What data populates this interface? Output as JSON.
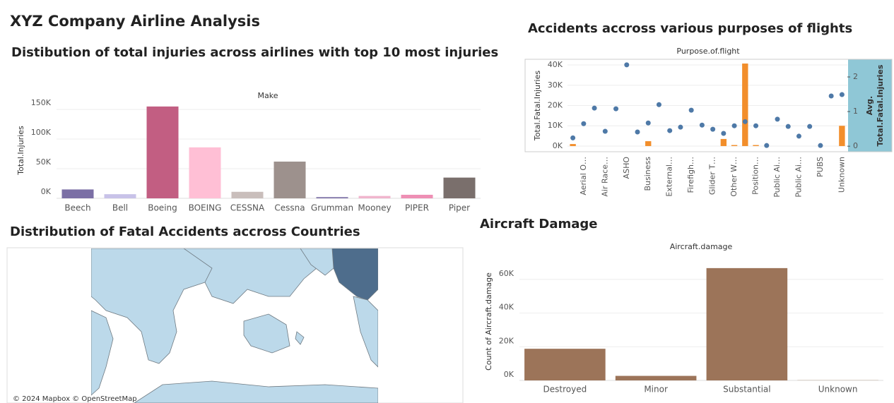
{
  "title": "XYZ Company Airline Analysis",
  "chart_data": [
    {
      "type": "bar",
      "title": "Distibution of total injuries across airlines with top 10 most injuries",
      "header": "Make",
      "ylabel": "Total.Injuries",
      "categories": [
        "Beech",
        "Bell",
        "Boeing",
        "BOEING",
        "CESSNA",
        "Cessna",
        "Grumman",
        "Mooney",
        "PIPER",
        "Piper"
      ],
      "values": [
        15000,
        7000,
        155000,
        86000,
        11000,
        62000,
        2000,
        4000,
        6000,
        35000
      ],
      "colors": [
        "#7b6fa5",
        "#c8c2e8",
        "#c25e82",
        "#ffbfd5",
        "#c9bebb",
        "#9d918d",
        "#7b6fa5",
        "#f0b5cd",
        "#ee8fb4",
        "#7a6f6c"
      ],
      "ylim": [
        0,
        162000
      ],
      "yticks": [
        {
          "value": 0,
          "label": "0K"
        },
        {
          "value": 50000,
          "label": "50K"
        },
        {
          "value": 100000,
          "label": "100K"
        },
        {
          "value": 150000,
          "label": "150K"
        }
      ],
      "grid": true
    },
    {
      "type": "combo",
      "title": "Accidents accross various purposes of flights",
      "header": "Purpose.of.flight",
      "ylabel": "Total.Fatal.Injuries",
      "y2label": [
        "Avg.",
        "Total.Fatal.Injuries"
      ],
      "categories": [
        null,
        "Aerial O…",
        null,
        "Air Race…",
        null,
        "ASHO",
        null,
        "Business",
        null,
        "External…",
        null,
        "Firefigh…",
        null,
        "Glider T…",
        null,
        "Other W…",
        null,
        "Position…",
        null,
        "Public Ai…",
        null,
        "Public Ai…",
        null,
        "PUBS",
        null,
        "Unknown"
      ],
      "series": [
        {
          "type": "bar",
          "color": "#f28e2b",
          "values": [
            1000,
            0,
            0,
            0,
            0,
            0,
            0,
            2400,
            0,
            0,
            0,
            0,
            0,
            0,
            3500,
            500,
            40700,
            500,
            0,
            0,
            0,
            0,
            0,
            0,
            0,
            10000
          ]
        },
        {
          "type": "scatter",
          "axis": "y2",
          "color": "#4e79a7",
          "values": [
            0.24,
            0.65,
            1.1,
            0.43,
            1.08,
            2.35,
            0.41,
            0.67,
            1.2,
            0.45,
            0.55,
            1.04,
            0.61,
            0.49,
            0.37,
            0.59,
            0.71,
            0.59,
            0.02,
            0.78,
            0.57,
            0.29,
            0.57,
            0.02,
            1.45,
            1.49
          ]
        }
      ],
      "ylim": [
        -2800,
        42800
      ],
      "yticks": [
        {
          "value": 0,
          "label": "0K"
        },
        {
          "value": 10000,
          "label": "10K"
        },
        {
          "value": 20000,
          "label": "20K"
        },
        {
          "value": 30000,
          "label": "30K"
        },
        {
          "value": 40000,
          "label": "40K"
        }
      ],
      "y2lim": [
        -0.16,
        2.51
      ],
      "y2ticks": [
        0,
        1,
        2
      ],
      "grid": true
    },
    {
      "type": "map",
      "title": "Distribution of Fatal Accidents accross Countries",
      "attribution": "© 2024 Mapbox © OpenStreetMap"
    },
    {
      "type": "bar",
      "title": "Aircraft Damage",
      "header": "Aircraft.damage",
      "ylabel": "Count of Aircraft.damage",
      "categories": [
        "Destroyed",
        "Minor",
        "Substantial",
        "Unknown"
      ],
      "values": [
        18800,
        2700,
        66700,
        100
      ],
      "color": "#9c7459",
      "ylim": [
        0,
        70000
      ],
      "yticks": [
        {
          "value": 0,
          "label": "0K"
        },
        {
          "value": 20000,
          "label": "20K"
        },
        {
          "value": 40000,
          "label": "40K"
        },
        {
          "value": 60000,
          "label": "60K"
        }
      ],
      "grid": true
    }
  ]
}
